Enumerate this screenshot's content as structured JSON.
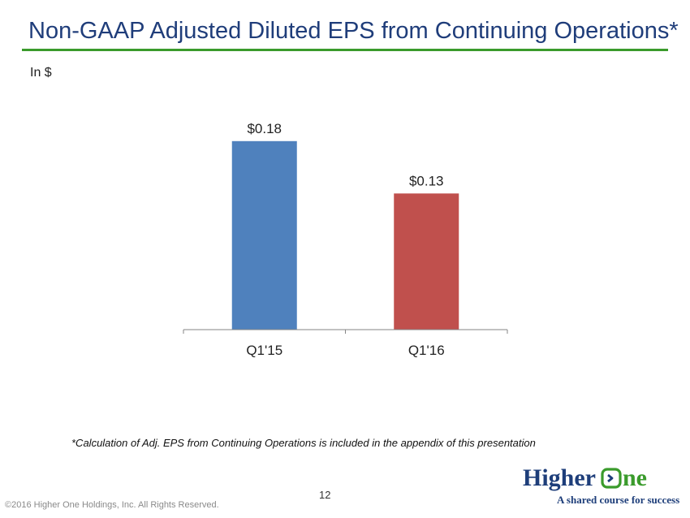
{
  "slide": {
    "title": "Non-GAAP Adjusted Diluted EPS from Continuing Operations*",
    "unit_label": "In $",
    "footnote": "*Calculation of Adj. EPS from Continuing Operations is included in the appendix of this presentation",
    "page_number": "12",
    "copyright": "©2016 Higher One Holdings, Inc. All Rights Reserved."
  },
  "logo": {
    "word_left": "Higher",
    "word_right": "ne",
    "tagline": "A shared course for success"
  },
  "colors": {
    "title": "#1f3d7a",
    "rule": "#3a9b2c",
    "bar_q115": "#4f81bd",
    "bar_q116": "#c0504d",
    "axis": "#868686"
  },
  "chart_data": {
    "type": "bar",
    "title": "",
    "xlabel": "",
    "ylabel": "",
    "categories": [
      "Q1'15",
      "Q1'16"
    ],
    "values": [
      0.18,
      0.13
    ],
    "data_labels": [
      "$0.18",
      "$0.13"
    ],
    "bar_colors": [
      "#4f81bd",
      "#c0504d"
    ],
    "ylim": [
      0,
      0.2
    ],
    "grid": false,
    "legend": "none"
  }
}
